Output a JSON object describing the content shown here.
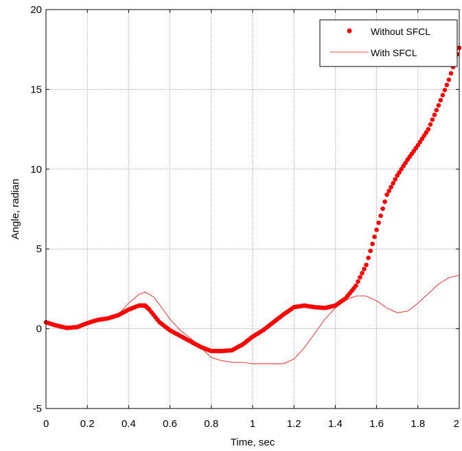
{
  "chart_data": {
    "type": "line",
    "title": "",
    "xlabel": "Time, sec",
    "ylabel": "Angle, radian",
    "xlim": [
      0,
      2
    ],
    "ylim": [
      -5,
      20
    ],
    "xticks": [
      0,
      0.2,
      0.4,
      0.6,
      0.8,
      1,
      1.2,
      1.4,
      1.6,
      1.8,
      2
    ],
    "xtick_labels": [
      "0",
      "0.2",
      "0.4",
      "0.6",
      "0.8",
      "1",
      "1.2",
      "1.4",
      "1.6",
      "1.8",
      "2"
    ],
    "yticks": [
      -5,
      0,
      5,
      10,
      15,
      20
    ],
    "ytick_labels": [
      "-5",
      "0",
      "5",
      "10",
      "15",
      "20"
    ],
    "grid": true,
    "legend_position": "top-right",
    "series": [
      {
        "name": "Without SFCL",
        "style": "markers",
        "color": "#ff0000",
        "x": [
          0,
          0.05,
          0.1,
          0.15,
          0.2,
          0.25,
          0.3,
          0.35,
          0.4,
          0.45,
          0.48,
          0.5,
          0.55,
          0.6,
          0.65,
          0.7,
          0.75,
          0.8,
          0.85,
          0.9,
          0.95,
          1.0,
          1.05,
          1.1,
          1.15,
          1.2,
          1.25,
          1.3,
          1.35,
          1.4,
          1.45,
          1.5,
          1.55,
          1.6,
          1.65,
          1.7,
          1.75,
          1.8,
          1.85,
          1.9,
          1.95,
          2.0
        ],
        "y": [
          0.4,
          0.2,
          0.05,
          0.1,
          0.35,
          0.55,
          0.65,
          0.85,
          1.2,
          1.45,
          1.45,
          1.2,
          0.4,
          -0.1,
          -0.45,
          -0.8,
          -1.15,
          -1.4,
          -1.4,
          -1.35,
          -1.0,
          -0.5,
          -0.1,
          0.4,
          0.9,
          1.35,
          1.45,
          1.35,
          1.3,
          1.45,
          1.9,
          2.7,
          4.0,
          6.2,
          8.4,
          9.6,
          10.6,
          11.5,
          12.5,
          14.0,
          15.6,
          17.6
        ]
      },
      {
        "name": "With SFCL",
        "style": "line",
        "color": "#ff0000",
        "x": [
          0,
          0.05,
          0.1,
          0.15,
          0.2,
          0.25,
          0.3,
          0.35,
          0.4,
          0.45,
          0.48,
          0.52,
          0.55,
          0.6,
          0.65,
          0.7,
          0.75,
          0.8,
          0.85,
          0.9,
          0.95,
          1.0,
          1.05,
          1.1,
          1.15,
          1.2,
          1.25,
          1.3,
          1.35,
          1.4,
          1.45,
          1.5,
          1.55,
          1.6,
          1.65,
          1.7,
          1.75,
          1.8,
          1.85,
          1.9,
          1.95,
          2.0
        ],
        "y": [
          0.4,
          0.25,
          0.05,
          0.05,
          0.3,
          0.5,
          0.6,
          0.9,
          1.6,
          2.15,
          2.3,
          2.0,
          1.5,
          0.6,
          -0.1,
          -0.6,
          -1.2,
          -1.8,
          -2.0,
          -2.1,
          -2.1,
          -2.2,
          -2.2,
          -2.2,
          -2.2,
          -1.9,
          -1.2,
          -0.3,
          0.6,
          1.3,
          1.8,
          2.05,
          2.05,
          1.75,
          1.3,
          1.0,
          1.1,
          1.6,
          2.2,
          2.8,
          3.2,
          3.35
        ]
      }
    ]
  }
}
